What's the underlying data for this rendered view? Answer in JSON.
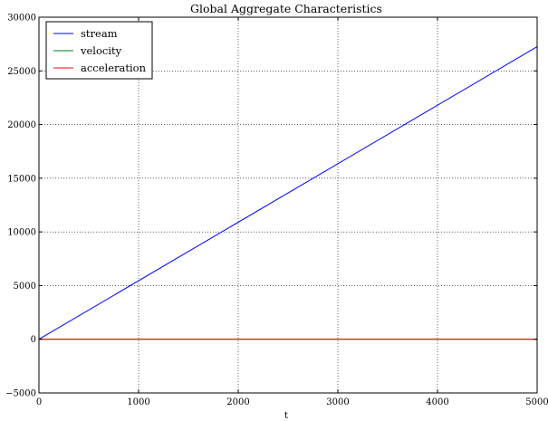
{
  "chart_data": {
    "type": "line",
    "title": "Global Aggregate Characteristics",
    "xlabel": "t",
    "ylabel": "",
    "xlim": [
      0,
      5000
    ],
    "ylim": [
      -5000,
      30000
    ],
    "xticks": [
      0,
      1000,
      2000,
      3000,
      4000,
      5000
    ],
    "xtick_labels": [
      "0",
      "1000",
      "2000",
      "3000",
      "4000",
      "5000"
    ],
    "yticks": [
      -5000,
      0,
      5000,
      10000,
      15000,
      20000,
      25000,
      30000
    ],
    "ytick_labels": [
      "−5000",
      "0",
      "5000",
      "10000",
      "15000",
      "20000",
      "25000",
      "30000"
    ],
    "grid": true,
    "legend_position": "top-left",
    "series": [
      {
        "name": "stream",
        "color": "#0000ff",
        "x": [
          0,
          5000
        ],
        "y": [
          0,
          27250
        ]
      },
      {
        "name": "velocity",
        "color": "#008000",
        "x": [
          0,
          5000
        ],
        "y": [
          5.45,
          5.45
        ]
      },
      {
        "name": "acceleration",
        "color": "#ff0000",
        "x": [
          0,
          5000
        ],
        "y": [
          0,
          0
        ]
      }
    ]
  }
}
